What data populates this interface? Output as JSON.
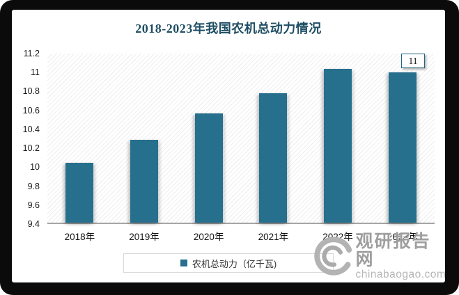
{
  "chart_data": {
    "type": "bar",
    "title": "2018-2023年我国农机总动力情况",
    "categories": [
      "2018年",
      "2019年",
      "2020年",
      "2021年",
      "2022年",
      "2023年"
    ],
    "series": [
      {
        "name": "农机总动力（亿千瓦)",
        "values": [
          10.04,
          10.28,
          10.56,
          10.78,
          11.04,
          11
        ]
      }
    ],
    "ylim": [
      9.4,
      11.2
    ],
    "ytick_labels": [
      "11.2",
      "11",
      "10.8",
      "10.6",
      "10.4",
      "10.2",
      "10",
      "9.8",
      "9.6",
      "9.4"
    ],
    "grid": false,
    "legend_position": "bottom",
    "data_label": {
      "category": "2023年",
      "text": "11"
    },
    "colors": {
      "bar": "#26708E",
      "title": "#1F4E63",
      "axis_line": "#A6A6A6",
      "data_label_border": "#1F647F"
    }
  },
  "watermark": {
    "brand": "观研报告网",
    "domain": "chinabaogao.com"
  }
}
